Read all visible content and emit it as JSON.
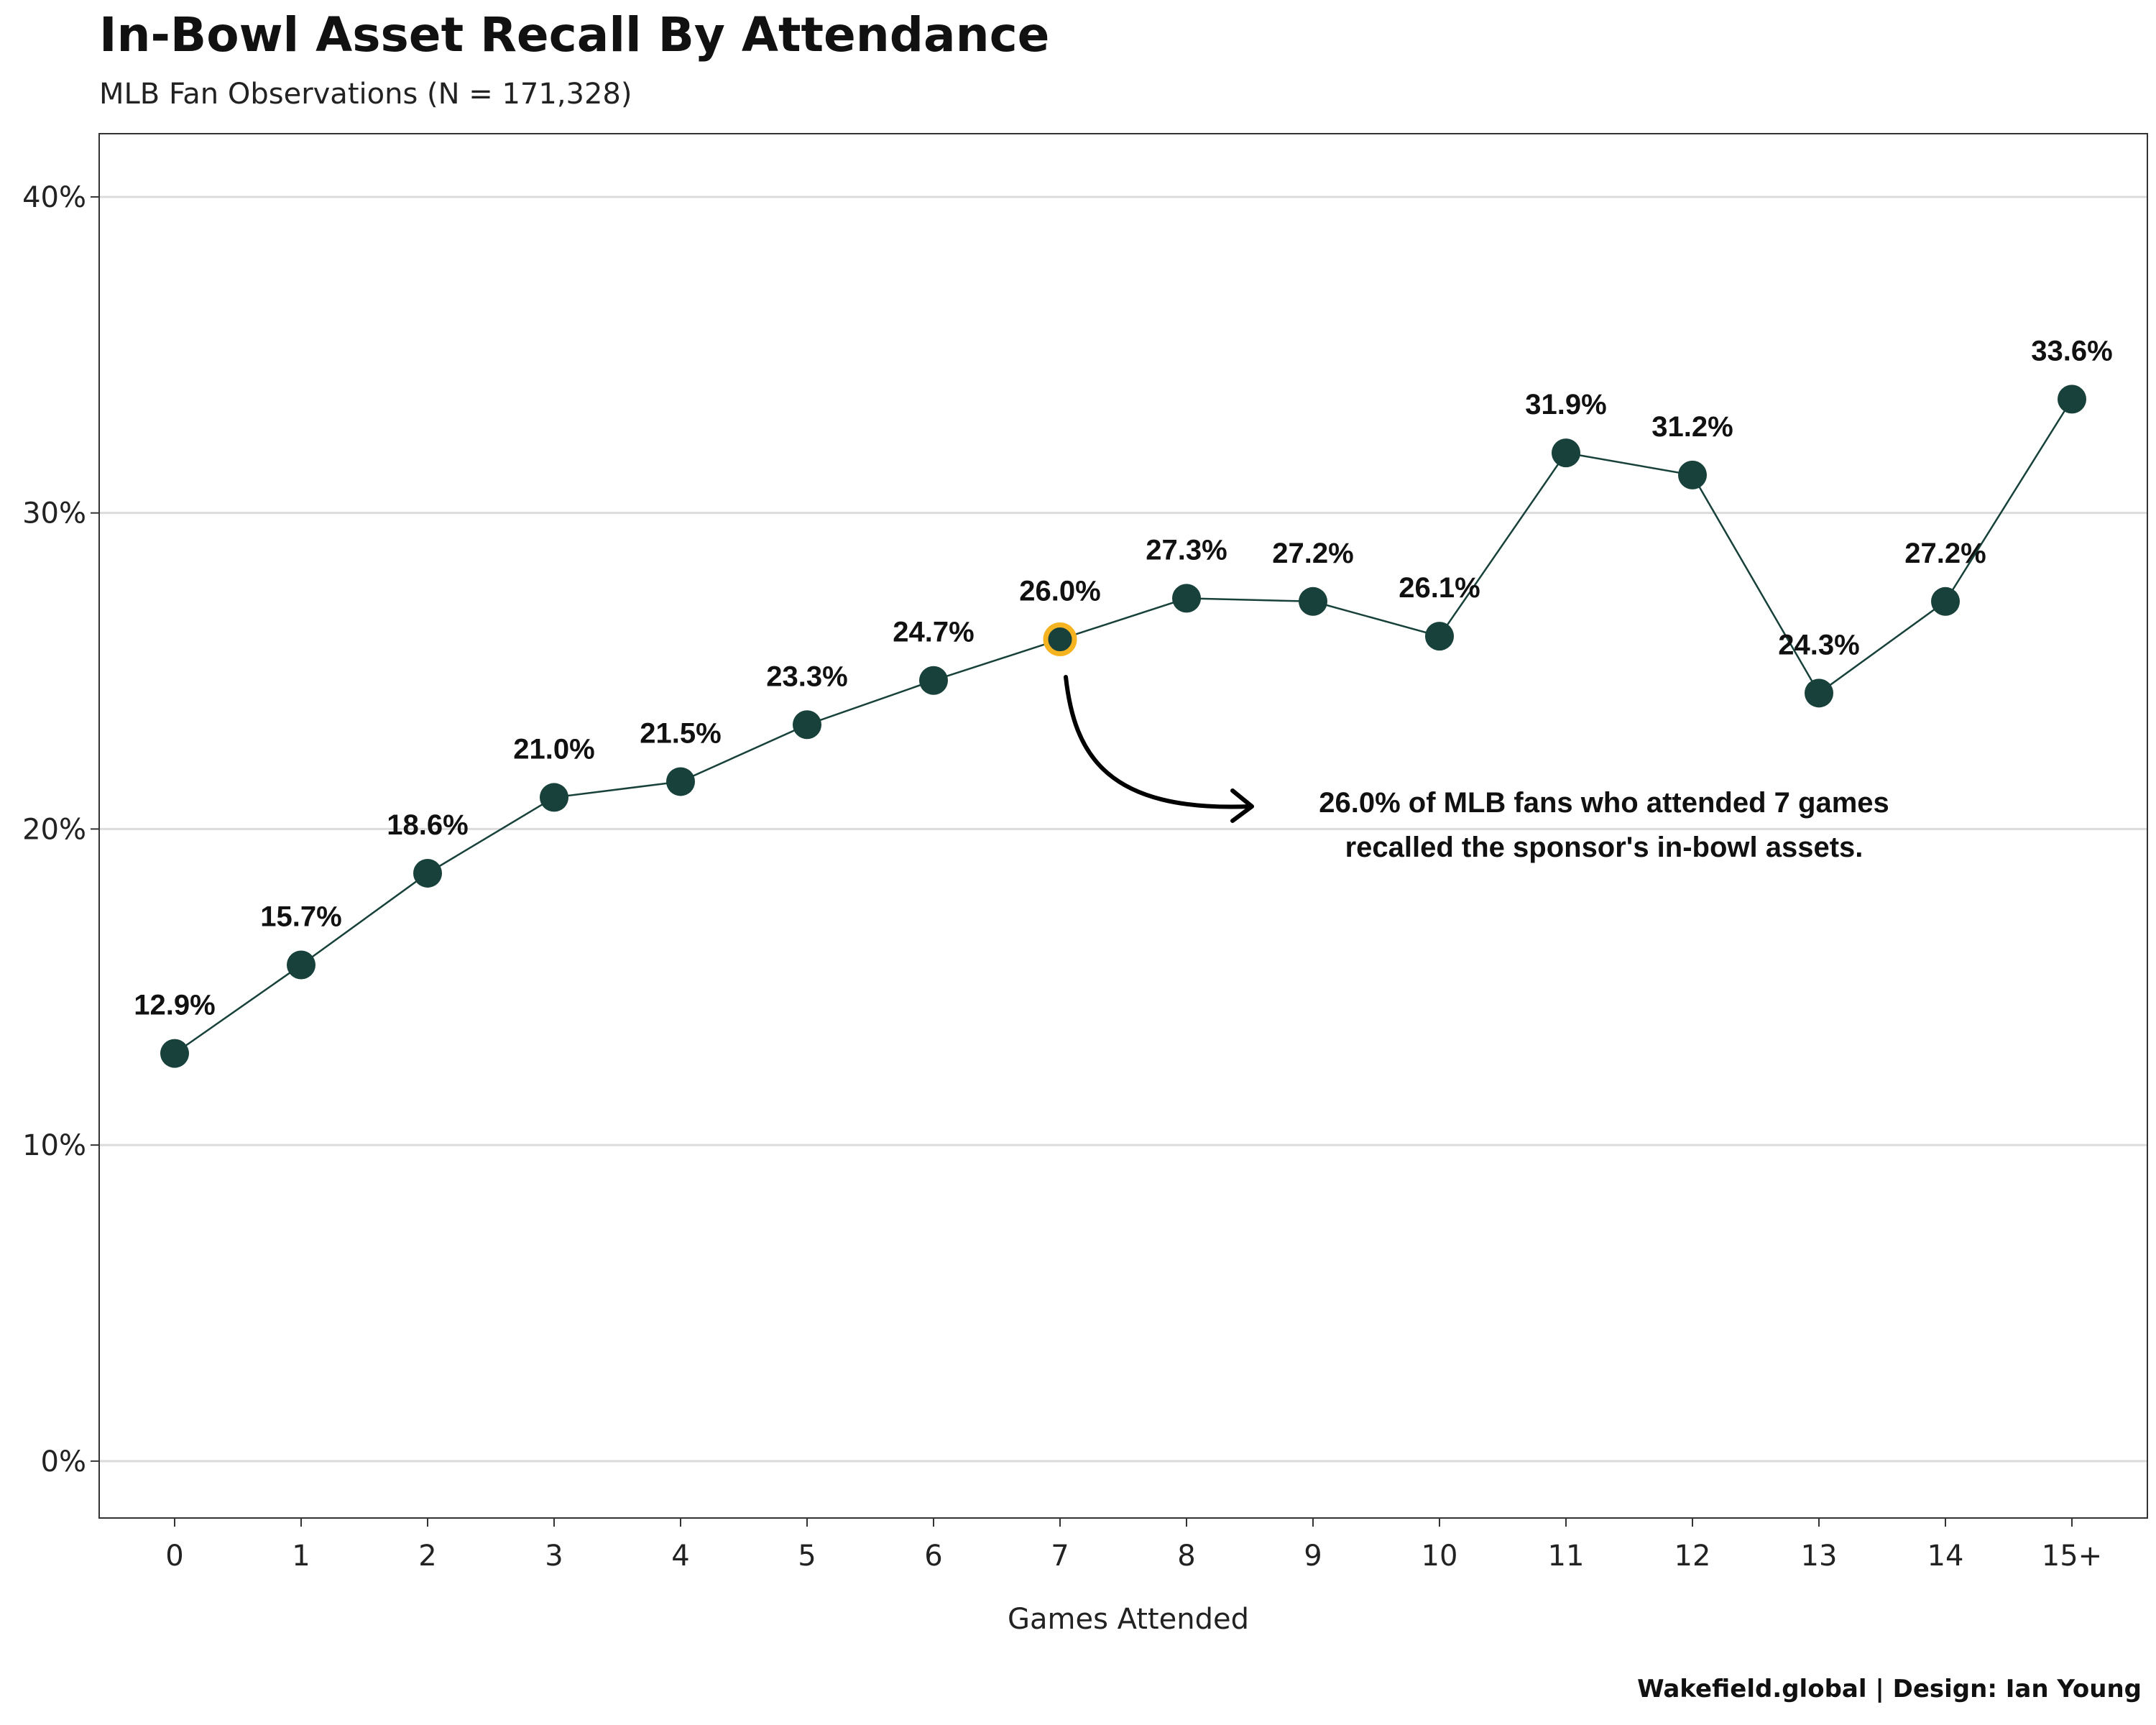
{
  "chart_data": {
    "type": "line",
    "title": "In-Bowl Asset Recall By Attendance",
    "subtitle": "MLB Fan Observations (N = 171,328)",
    "caption": "Wakefield.global | Design: Ian Young",
    "xlabel": "Games Attended",
    "ylabel": "",
    "categories": [
      "0",
      "1",
      "2",
      "3",
      "4",
      "5",
      "6",
      "7",
      "8",
      "9",
      "10",
      "11",
      "12",
      "13",
      "14",
      "15+"
    ],
    "values": [
      12.9,
      15.7,
      18.6,
      21.0,
      21.5,
      23.3,
      24.7,
      26.0,
      27.3,
      27.2,
      26.1,
      31.9,
      31.2,
      24.3,
      27.2,
      33.6
    ],
    "data_labels": [
      "12.9%",
      "15.7%",
      "18.6%",
      "21.0%",
      "21.5%",
      "23.3%",
      "24.7%",
      "26.0%",
      "27.3%",
      "27.2%",
      "26.1%",
      "31.9%",
      "31.2%",
      "24.3%",
      "27.2%",
      "33.6%"
    ],
    "ylim": [
      -1.8,
      42
    ],
    "yticks": [
      0,
      10,
      20,
      30,
      40
    ],
    "ytick_labels": [
      "0%",
      "10%",
      "20%",
      "30%",
      "40%"
    ],
    "grid": "horizontal",
    "highlight_index": 7,
    "annotation": {
      "lines": [
        "26.0% of MLB fans who attended 7 games",
        "recalled the sponsor's in-bowl assets."
      ]
    },
    "colors": {
      "point": "#17413a",
      "line": "#17413a",
      "highlight_outline": "#f5b320",
      "grid": "#dcdcdc",
      "frame": "#333333"
    }
  }
}
